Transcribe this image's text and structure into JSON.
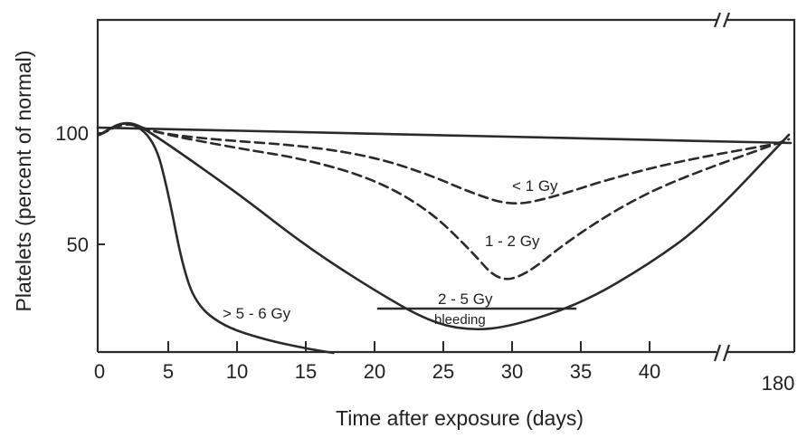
{
  "chart_data": {
    "type": "line",
    "title": "",
    "xlabel": "Time after exposure (days)",
    "ylabel": "Platelets (percent of normal)",
    "x_ticks": [
      "0",
      "5",
      "10",
      "15",
      "20",
      "25",
      "30",
      "35",
      "40",
      "180"
    ],
    "y_ticks": [
      "100",
      "50"
    ],
    "xlim": [
      0,
      180
    ],
    "axis_break": "between 40 and 180",
    "ylim": [
      0,
      150
    ],
    "grid": false,
    "reference_line": {
      "y": 100
    },
    "series": [
      {
        "name": "< 1 Gy",
        "style": "dashed",
        "points": [
          [
            0,
            98
          ],
          [
            2,
            104
          ],
          [
            4,
            99
          ],
          [
            8,
            96
          ],
          [
            15,
            93
          ],
          [
            20,
            88
          ],
          [
            24,
            80
          ],
          [
            27,
            72
          ],
          [
            30,
            66
          ],
          [
            33,
            70
          ],
          [
            37,
            78
          ],
          [
            42,
            86
          ],
          [
            180,
            95
          ]
        ]
      },
      {
        "name": "1 - 2 Gy",
        "style": "dashed",
        "points": [
          [
            0,
            98
          ],
          [
            2,
            104
          ],
          [
            4,
            99
          ],
          [
            10,
            92
          ],
          [
            15,
            87
          ],
          [
            20,
            78
          ],
          [
            24,
            64
          ],
          [
            27,
            46
          ],
          [
            29,
            32
          ],
          [
            31,
            35
          ],
          [
            34,
            50
          ],
          [
            38,
            66
          ],
          [
            42,
            78
          ],
          [
            180,
            96
          ]
        ]
      },
      {
        "name": "2 - 5 Gy",
        "annotation": "bleeding",
        "style": "solid",
        "points": [
          [
            0,
            98
          ],
          [
            2,
            105
          ],
          [
            4,
            98
          ],
          [
            10,
            72
          ],
          [
            15,
            48
          ],
          [
            20,
            28
          ],
          [
            24,
            14
          ],
          [
            27,
            10
          ],
          [
            30,
            12
          ],
          [
            35,
            22
          ],
          [
            40,
            40
          ],
          [
            44,
            58
          ],
          [
            180,
            98
          ]
        ]
      },
      {
        "name": "> 5 - 6 Gy",
        "style": "solid",
        "points": [
          [
            0,
            98
          ],
          [
            2,
            105
          ],
          [
            4,
            96
          ],
          [
            5,
            72
          ],
          [
            6,
            40
          ],
          [
            7,
            22
          ],
          [
            9,
            12
          ],
          [
            12,
            6
          ],
          [
            15,
            2
          ],
          [
            17,
            0
          ]
        ]
      }
    ]
  }
}
